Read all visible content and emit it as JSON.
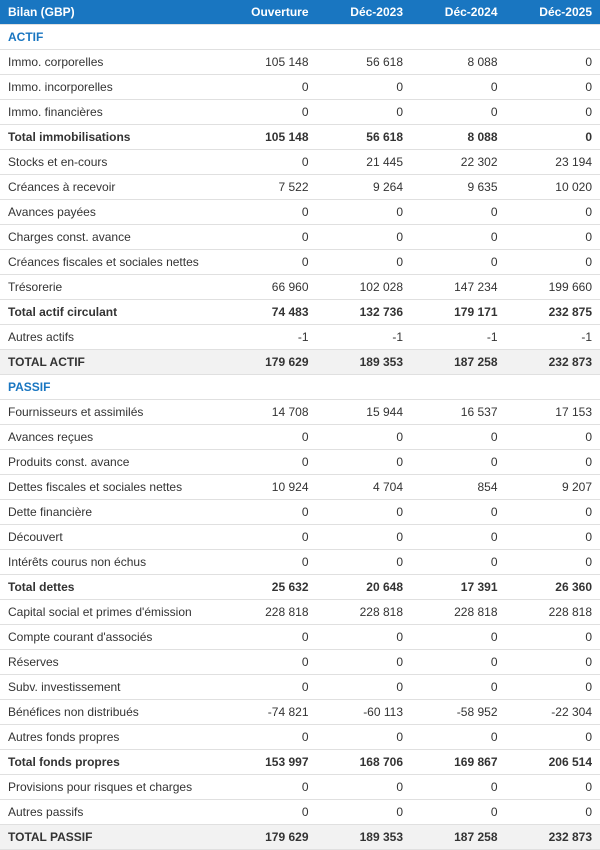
{
  "header": {
    "title": "Bilan (GBP)",
    "cols": [
      "Ouverture",
      "Déc-2023",
      "Déc-2024",
      "Déc-2025"
    ]
  },
  "colors": {
    "header_bg": "#1976c1",
    "header_fg": "#ffffff",
    "section_fg": "#1976c1",
    "shade_bg": "#f2f2f2",
    "border": "#e0e0e0",
    "text": "#333333"
  },
  "rows": [
    {
      "type": "section",
      "label": "ACTIF"
    },
    {
      "label": "Immo. corporelles",
      "v": [
        "105 148",
        "56 618",
        "8 088",
        "0"
      ]
    },
    {
      "label": "Immo. incorporelles",
      "v": [
        "0",
        "0",
        "0",
        "0"
      ]
    },
    {
      "label": "Immo. financières",
      "v": [
        "0",
        "0",
        "0",
        "0"
      ]
    },
    {
      "label": "Total immobilisations",
      "v": [
        "105 148",
        "56 618",
        "8 088",
        "0"
      ],
      "bold": true
    },
    {
      "label": "Stocks et en-cours",
      "v": [
        "0",
        "21 445",
        "22 302",
        "23 194"
      ]
    },
    {
      "label": "Créances à recevoir",
      "v": [
        "7 522",
        "9 264",
        "9 635",
        "10 020"
      ]
    },
    {
      "label": "Avances payées",
      "v": [
        "0",
        "0",
        "0",
        "0"
      ]
    },
    {
      "label": "Charges const. avance",
      "v": [
        "0",
        "0",
        "0",
        "0"
      ]
    },
    {
      "label": "Créances fiscales et sociales nettes",
      "v": [
        "0",
        "0",
        "0",
        "0"
      ]
    },
    {
      "label": "Trésorerie",
      "v": [
        "66 960",
        "102 028",
        "147 234",
        "199 660"
      ]
    },
    {
      "label": "Total actif circulant",
      "v": [
        "74 483",
        "132 736",
        "179 171",
        "232 875"
      ],
      "bold": true
    },
    {
      "label": "Autres actifs",
      "v": [
        "-1",
        "-1",
        "-1",
        "-1"
      ]
    },
    {
      "label": "TOTAL ACTIF",
      "v": [
        "179 629",
        "189 353",
        "187 258",
        "232 873"
      ],
      "bold": true,
      "shade": true
    },
    {
      "type": "section",
      "label": "PASSIF"
    },
    {
      "label": "Fournisseurs et assimilés",
      "v": [
        "14 708",
        "15 944",
        "16 537",
        "17 153"
      ]
    },
    {
      "label": "Avances reçues",
      "v": [
        "0",
        "0",
        "0",
        "0"
      ]
    },
    {
      "label": "Produits const. avance",
      "v": [
        "0",
        "0",
        "0",
        "0"
      ]
    },
    {
      "label": "Dettes fiscales et sociales nettes",
      "v": [
        "10 924",
        "4 704",
        "854",
        "9 207"
      ]
    },
    {
      "label": "Dette financière",
      "v": [
        "0",
        "0",
        "0",
        "0"
      ]
    },
    {
      "label": "Découvert",
      "v": [
        "0",
        "0",
        "0",
        "0"
      ]
    },
    {
      "label": "Intérêts courus non échus",
      "v": [
        "0",
        "0",
        "0",
        "0"
      ]
    },
    {
      "label": "Total dettes",
      "v": [
        "25 632",
        "20 648",
        "17 391",
        "26 360"
      ],
      "bold": true
    },
    {
      "label": "Capital social et primes d'émission",
      "v": [
        "228 818",
        "228 818",
        "228 818",
        "228 818"
      ]
    },
    {
      "label": "Compte courant d'associés",
      "v": [
        "0",
        "0",
        "0",
        "0"
      ]
    },
    {
      "label": "Réserves",
      "v": [
        "0",
        "0",
        "0",
        "0"
      ]
    },
    {
      "label": "Subv. investissement",
      "v": [
        "0",
        "0",
        "0",
        "0"
      ]
    },
    {
      "label": "Bénéfices non distribués",
      "v": [
        "-74 821",
        "-60 113",
        "-58 952",
        "-22 304"
      ]
    },
    {
      "label": "Autres fonds propres",
      "v": [
        "0",
        "0",
        "0",
        "0"
      ]
    },
    {
      "label": "Total fonds propres",
      "v": [
        "153 997",
        "168 706",
        "169 867",
        "206 514"
      ],
      "bold": true
    },
    {
      "label": "Provisions pour risques et charges",
      "v": [
        "0",
        "0",
        "0",
        "0"
      ]
    },
    {
      "label": "Autres passifs",
      "v": [
        "0",
        "0",
        "0",
        "0"
      ]
    },
    {
      "label": "TOTAL PASSIF",
      "v": [
        "179 629",
        "189 353",
        "187 258",
        "232 873"
      ],
      "bold": true,
      "shade": true
    }
  ]
}
